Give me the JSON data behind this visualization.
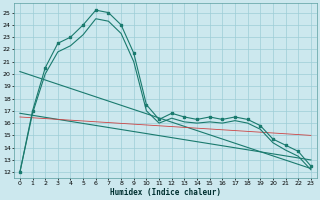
{
  "xlabel": "Humidex (Indice chaleur)",
  "bg_color": "#cce8ee",
  "grid_color": "#9ecdd6",
  "line_color": "#1a7a6e",
  "red_line_color": "#cc4444",
  "xlim": [
    -0.5,
    23.5
  ],
  "ylim": [
    11.5,
    25.8
  ],
  "yticks": [
    12,
    13,
    14,
    15,
    16,
    17,
    18,
    19,
    20,
    21,
    22,
    23,
    24,
    25
  ],
  "xticks": [
    0,
    1,
    2,
    3,
    4,
    5,
    6,
    7,
    8,
    9,
    10,
    11,
    12,
    13,
    14,
    15,
    16,
    17,
    18,
    19,
    20,
    21,
    22,
    23
  ],
  "curve1_x": [
    0,
    1,
    2,
    3,
    4,
    5,
    6,
    7,
    8,
    9,
    10,
    11,
    12,
    13,
    14,
    15,
    16,
    17,
    18,
    19,
    20,
    21,
    22,
    23
  ],
  "curve1_y": [
    12.0,
    17.0,
    20.5,
    22.5,
    23.0,
    24.0,
    25.2,
    25.0,
    24.0,
    21.7,
    17.5,
    16.3,
    16.8,
    16.5,
    16.3,
    16.5,
    16.3,
    16.5,
    16.3,
    15.8,
    14.7,
    14.2,
    13.7,
    12.5
  ],
  "curve2_x": [
    0,
    1,
    2,
    3,
    4,
    5,
    6,
    7,
    8,
    9,
    10,
    11,
    12,
    13,
    14,
    15,
    16,
    17,
    18,
    19,
    20,
    21,
    22,
    23
  ],
  "curve2_y": [
    12.0,
    16.8,
    20.0,
    21.8,
    22.3,
    23.2,
    24.5,
    24.3,
    23.3,
    21.0,
    17.0,
    16.0,
    16.4,
    16.1,
    16.0,
    16.1,
    16.0,
    16.2,
    16.0,
    15.5,
    14.4,
    13.8,
    13.3,
    12.2
  ],
  "trend1_x": [
    0,
    23
  ],
  "trend1_y": [
    16.8,
    13.0
  ],
  "trend2_x": [
    0,
    23
  ],
  "trend2_y": [
    20.2,
    12.3
  ],
  "redline_x": [
    0,
    23
  ],
  "redline_y": [
    16.5,
    15.0
  ]
}
